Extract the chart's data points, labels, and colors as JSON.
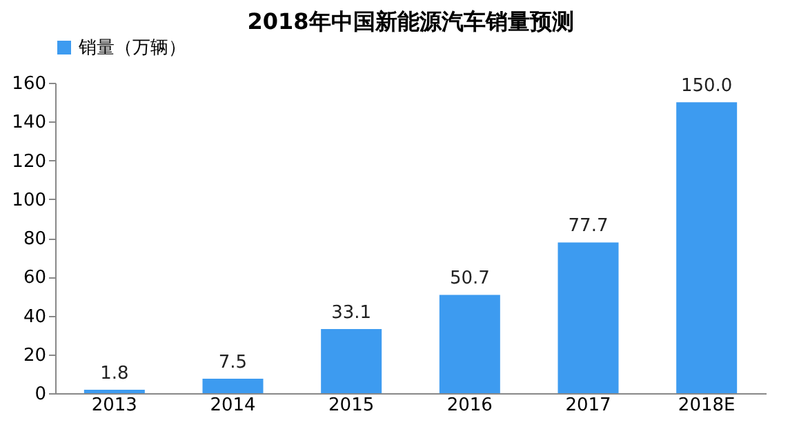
{
  "chart_data": {
    "type": "bar",
    "title": "2018年中国新能源汽车销量预测",
    "categories": [
      "2013",
      "2014",
      "2015",
      "2016",
      "2017",
      "2018E"
    ],
    "series": [
      {
        "name": "销量（万辆）",
        "color": "#3d9bf0",
        "values": [
          1.8,
          7.5,
          33.1,
          50.7,
          77.7,
          150.0
        ]
      }
    ],
    "value_labels": [
      "1.8",
      "7.5",
      "33.1",
      "50.7",
      "77.7",
      "150.0"
    ],
    "ylim": [
      0,
      160
    ],
    "yticks": [
      0,
      20,
      40,
      60,
      80,
      100,
      120,
      140,
      160
    ],
    "grid": false,
    "legend": "top"
  }
}
